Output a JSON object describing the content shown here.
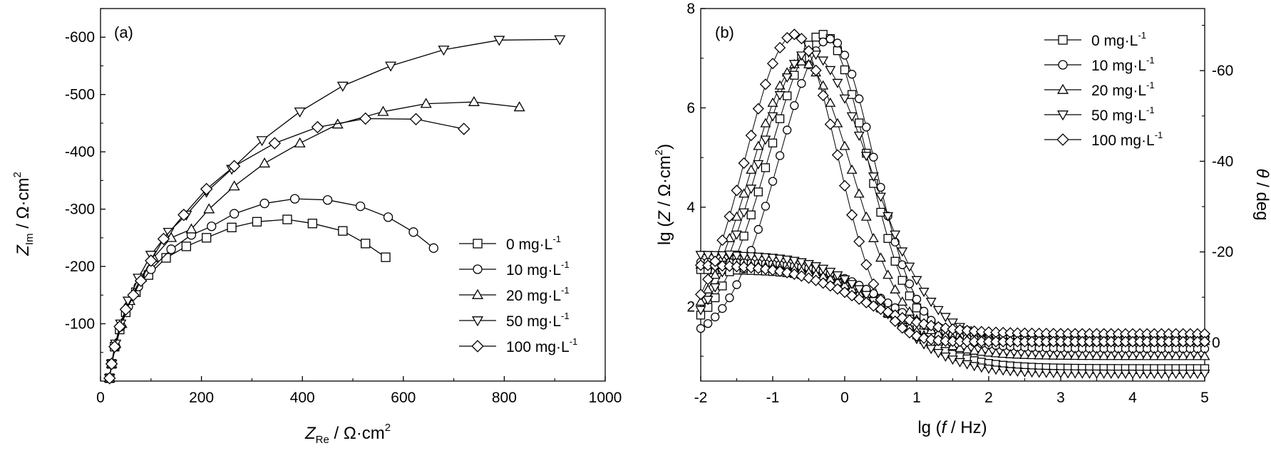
{
  "chart_data": [
    {
      "type": "scatter",
      "panel_label": "(a)",
      "xlabel_main": "Z",
      "xlabel_sub": "Re",
      "xlabel_unit": " / Ω·cm",
      "xlabel_sup": "2",
      "ylabel_main": "Z",
      "ylabel_sub": "Im",
      "ylabel_unit": " / Ω·cm",
      "ylabel_sup": "2",
      "xlim": [
        0,
        1000
      ],
      "ylim": [
        0,
        -650
      ],
      "x_ticks": [
        0,
        200,
        400,
        600,
        800,
        1000
      ],
      "y_ticks": [
        -100,
        -200,
        -300,
        -400,
        -500,
        -600
      ],
      "legend_position": "bottom-right",
      "series": [
        {
          "name": "0 mg·L",
          "name_sup": "-1",
          "marker": "square",
          "points": [
            [
              18,
              -5
            ],
            [
              22,
              -30
            ],
            [
              28,
              -60
            ],
            [
              38,
              -90
            ],
            [
              50,
              -120
            ],
            [
              70,
              -155
            ],
            [
              95,
              -185
            ],
            [
              130,
              -215
            ],
            [
              170,
              -235
            ],
            [
              210,
              -250
            ],
            [
              260,
              -268
            ],
            [
              310,
              -278
            ],
            [
              370,
              -282
            ],
            [
              420,
              -275
            ],
            [
              480,
              -262
            ],
            [
              525,
              -240
            ],
            [
              565,
              -216
            ]
          ]
        },
        {
          "name": "10 mg·L",
          "name_sup": "-1",
          "marker": "circle",
          "points": [
            [
              18,
              -5
            ],
            [
              22,
              -30
            ],
            [
              30,
              -60
            ],
            [
              40,
              -95
            ],
            [
              55,
              -130
            ],
            [
              75,
              -165
            ],
            [
              100,
              -195
            ],
            [
              140,
              -230
            ],
            [
              180,
              -255
            ],
            [
              220,
              -270
            ],
            [
              265,
              -292
            ],
            [
              325,
              -310
            ],
            [
              385,
              -318
            ],
            [
              450,
              -316
            ],
            [
              515,
              -305
            ],
            [
              570,
              -286
            ],
            [
              620,
              -260
            ],
            [
              660,
              -232
            ]
          ]
        },
        {
          "name": "20 mg·L",
          "name_sup": "-1",
          "marker": "triangle-up",
          "points": [
            [
              18,
              -5
            ],
            [
              22,
              -30
            ],
            [
              30,
              -65
            ],
            [
              42,
              -100
            ],
            [
              58,
              -140
            ],
            [
              80,
              -180
            ],
            [
              105,
              -215
            ],
            [
              140,
              -250
            ],
            [
              180,
              -265
            ],
            [
              215,
              -300
            ],
            [
              265,
              -340
            ],
            [
              325,
              -380
            ],
            [
              395,
              -415
            ],
            [
              470,
              -448
            ],
            [
              560,
              -470
            ],
            [
              645,
              -484
            ],
            [
              740,
              -487
            ],
            [
              830,
              -478
            ]
          ]
        },
        {
          "name": "50 mg·L",
          "name_sup": "-1",
          "marker": "triangle-down",
          "points": [
            [
              18,
              -5
            ],
            [
              22,
              -30
            ],
            [
              30,
              -65
            ],
            [
              40,
              -100
            ],
            [
              55,
              -140
            ],
            [
              75,
              -180
            ],
            [
              100,
              -220
            ],
            [
              135,
              -260
            ],
            [
              170,
              -290
            ],
            [
              210,
              -330
            ],
            [
              260,
              -370
            ],
            [
              320,
              -420
            ],
            [
              395,
              -470
            ],
            [
              480,
              -515
            ],
            [
              575,
              -550
            ],
            [
              680,
              -578
            ],
            [
              790,
              -595
            ],
            [
              910,
              -596
            ]
          ]
        },
        {
          "name": "100 mg·L",
          "name_sup": "-1",
          "marker": "diamond",
          "points": [
            [
              18,
              -5
            ],
            [
              22,
              -30
            ],
            [
              28,
              -60
            ],
            [
              38,
              -95
            ],
            [
              50,
              -125
            ],
            [
              65,
              -150
            ],
            [
              80,
              -175
            ],
            [
              100,
              -210
            ],
            [
              125,
              -248
            ],
            [
              165,
              -290
            ],
            [
              210,
              -335
            ],
            [
              265,
              -375
            ],
            [
              345,
              -415
            ],
            [
              430,
              -443
            ],
            [
              525,
              -458
            ],
            [
              625,
              -457
            ],
            [
              720,
              -440
            ]
          ]
        }
      ]
    },
    {
      "type": "scatter",
      "panel_label": "(b)",
      "xlabel_prefix": "lg (",
      "xlabel_italic": "f",
      "xlabel_suffix": " / Hz)",
      "ylabel_prefix": "lg (",
      "ylabel_italic": "Z",
      "ylabel_mid": " / Ω·cm",
      "ylabel_sup": "2",
      "ylabel_close": ")",
      "y2label_italic": "θ",
      "y2label_suffix": " / deg",
      "xlim": [
        -2,
        5
      ],
      "ylim": [
        0.5,
        8
      ],
      "y2lim": [
        -8.5,
        73.7
      ],
      "x_ticks": [
        -2,
        -1,
        0,
        1,
        2,
        3,
        4,
        5
      ],
      "y_ticks": [
        2,
        4,
        6,
        8
      ],
      "y2_ticks": [
        0,
        -20,
        -40,
        -60
      ],
      "legend_position": "top-right",
      "series": [
        {
          "name": "0 mg·L",
          "name_sup": "-1",
          "marker": "square",
          "lgZ_high_freq": 0.75,
          "lgZ_low_freq": 2.75,
          "lgZ_center": 0.7,
          "lgZ_width": 0.45,
          "theta_peak": -68,
          "theta_peak_at": -0.3,
          "theta_width_low": 1.05,
          "theta_width_high": 0.85,
          "theta_tail": -1.2
        },
        {
          "name": "10 mg·L",
          "name_sup": "-1",
          "marker": "circle",
          "lgZ_high_freq": 1.15,
          "lgZ_low_freq": 2.9,
          "lgZ_center": 0.65,
          "lgZ_width": 0.45,
          "theta_peak": -67,
          "theta_peak_at": -0.2,
          "theta_width_low": 1.0,
          "theta_width_high": 0.85,
          "theta_tail": -0.5
        },
        {
          "name": "20 mg·L",
          "name_sup": "-1",
          "marker": "triangle-up",
          "lgZ_high_freq": 1.0,
          "lgZ_low_freq": 2.85,
          "lgZ_center": 0.55,
          "lgZ_width": 0.45,
          "theta_peak": -62,
          "theta_peak_at": -0.6,
          "theta_width_low": 1.0,
          "theta_width_high": 1.0,
          "theta_tail": -0.3
        },
        {
          "name": "50 mg·L",
          "name_sup": "-1",
          "marker": "triangle-down",
          "lgZ_high_freq": 0.65,
          "lgZ_low_freq": 3.05,
          "lgZ_center": 0.6,
          "lgZ_width": 0.45,
          "theta_peak": -64,
          "theta_peak_at": -0.5,
          "theta_width_low": 1.0,
          "theta_width_high": 1.2,
          "theta_tail": -0.5
        },
        {
          "name": "100 mg·L",
          "name_sup": "-1",
          "marker": "diamond",
          "lgZ_high_freq": 1.45,
          "lgZ_low_freq": 2.85,
          "lgZ_center": 0.2,
          "lgZ_width": 0.5,
          "theta_peak": -68,
          "theta_peak_at": -0.7,
          "theta_width_low": 0.95,
          "theta_width_high": 0.85,
          "theta_tail": -0.2
        }
      ]
    }
  ]
}
